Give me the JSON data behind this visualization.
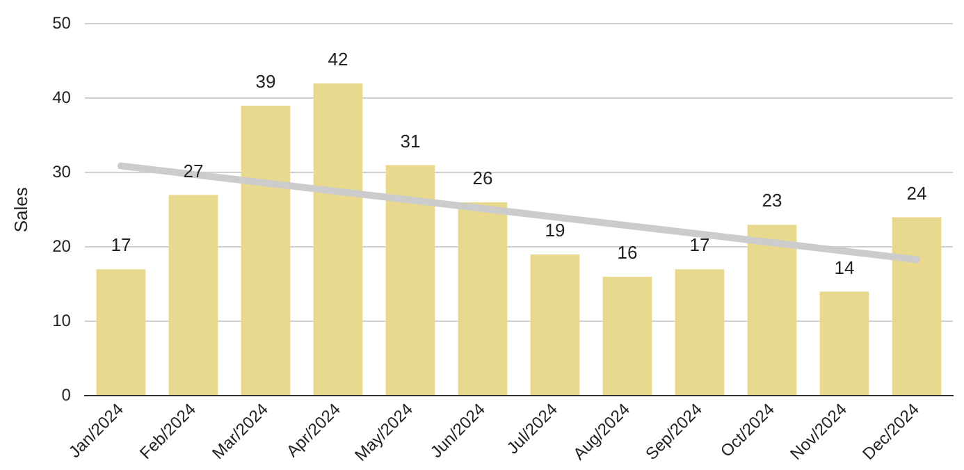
{
  "chart_data": {
    "type": "bar",
    "ylabel": "Sales",
    "categories": [
      "Jan/2024",
      "Feb/2024",
      "Mar/2024",
      "Apr/2024",
      "May/2024",
      "Jun/2024",
      "Jul/2024",
      "Aug/2024",
      "Sep/2024",
      "Oct/2024",
      "Nov/2024",
      "Dec/2024"
    ],
    "series": [
      {
        "color": "#e8d98f",
        "values": [
          17,
          27,
          39,
          42,
          31,
          26,
          19,
          16,
          17,
          23,
          14,
          24
        ],
        "value_labels": [
          "17",
          "27",
          "39",
          "42",
          "31",
          "26",
          "19",
          "16",
          "17",
          "23",
          "14",
          "24"
        ]
      },
      {
        "type": "line",
        "color": "#cccccc",
        "x": [
          "Jan/2024",
          "Dec/2024"
        ],
        "values": [
          30.9,
          18.3
        ]
      }
    ],
    "ylim": [
      0,
      50
    ],
    "yticks": [
      0,
      10,
      20,
      30,
      40,
      50
    ],
    "grid": "y",
    "legend": false
  }
}
